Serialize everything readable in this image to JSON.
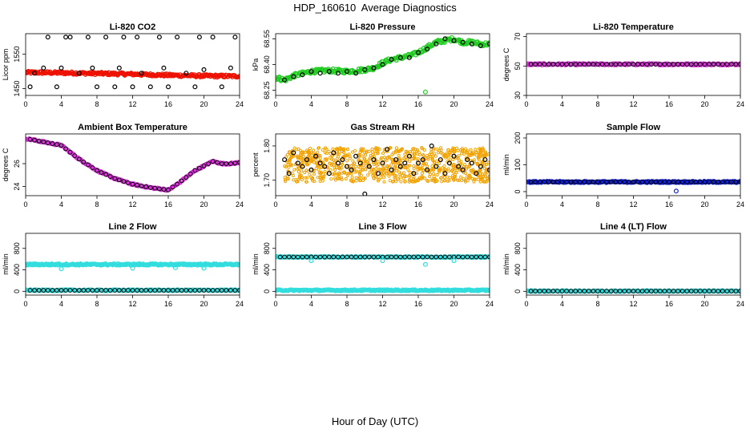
{
  "page": {
    "title": "HDP_160610  Average Diagnostics",
    "xlabel": "Hour of Day (UTC)"
  },
  "chart_data": [
    {
      "type": "scatter",
      "title": "Li-820 CO2",
      "ylabel": "Licor ppm",
      "xlim": [
        0,
        24
      ],
      "ylim": [
        1430,
        1610
      ],
      "xticks": [
        0,
        4,
        8,
        12,
        16,
        20,
        24
      ],
      "yticks": [
        1450,
        1550
      ],
      "series": [
        {
          "color": "#ee1100",
          "kind": "band",
          "x": [
            0,
            4,
            8,
            12,
            16,
            20,
            24
          ],
          "y": [
            1497,
            1496,
            1494,
            1492,
            1489,
            1487,
            1486
          ],
          "spread": 4
        },
        {
          "color": "#000000",
          "kind": "points",
          "x": [
            0.5,
            1,
            2,
            2.5,
            3.5,
            4,
            4.5,
            5,
            6,
            7,
            7.5,
            8,
            9,
            10,
            10.5,
            11,
            12,
            12.5,
            13,
            14,
            15,
            15.5,
            16,
            17,
            18,
            19,
            19.5,
            20,
            21,
            22,
            23,
            23.5
          ],
          "y": [
            1455,
            1495,
            1510,
            1600,
            1455,
            1510,
            1600,
            1600,
            1495,
            1600,
            1510,
            1455,
            1600,
            1455,
            1510,
            1600,
            1455,
            1600,
            1495,
            1455,
            1600,
            1510,
            1455,
            1600,
            1495,
            1455,
            1600,
            1505,
            1600,
            1455,
            1510,
            1600
          ]
        }
      ]
    },
    {
      "type": "scatter",
      "title": "Li-820 Pressure",
      "ylabel": "kPa",
      "xlim": [
        0,
        24
      ],
      "ylim": [
        68.22,
        68.58
      ],
      "xticks": [
        0,
        4,
        8,
        12,
        16,
        20,
        24
      ],
      "yticks": [
        68.25,
        68.4,
        68.55
      ],
      "ytick_labels": [
        "68.25",
        "68.40",
        "68.55"
      ],
      "series": [
        {
          "color": "#22cc22",
          "kind": "band",
          "x": [
            0,
            1,
            2,
            4,
            6,
            8,
            10,
            11,
            12,
            13,
            14,
            15,
            16,
            17,
            18,
            19,
            20,
            21,
            22,
            23,
            24
          ],
          "y": [
            68.325,
            68.31,
            68.335,
            68.36,
            68.365,
            68.36,
            68.37,
            68.38,
            68.41,
            68.43,
            68.44,
            68.45,
            68.47,
            68.5,
            68.53,
            68.54,
            68.55,
            68.53,
            68.53,
            68.52,
            68.52
          ],
          "spread": 0.012
        },
        {
          "color": "#000000",
          "kind": "points",
          "x": [
            1,
            2,
            3,
            4,
            5,
            6,
            7,
            8,
            9,
            10,
            11,
            12,
            13,
            14,
            15,
            16,
            17,
            18,
            19,
            20,
            21,
            22,
            23,
            24
          ],
          "y": [
            68.31,
            68.33,
            68.34,
            68.36,
            68.35,
            68.36,
            68.35,
            68.36,
            68.35,
            68.37,
            68.38,
            68.4,
            68.43,
            68.44,
            68.44,
            68.47,
            68.49,
            68.52,
            68.55,
            68.54,
            68.53,
            68.52,
            68.51,
            68.52
          ]
        },
        {
          "color": "#22cc22",
          "kind": "points",
          "x": [
            16.8
          ],
          "y": [
            68.24
          ]
        }
      ]
    },
    {
      "type": "scatter",
      "title": "Li-820 Temperature",
      "ylabel": "degrees C",
      "xlim": [
        0,
        24
      ],
      "ylim": [
        30,
        72
      ],
      "xticks": [
        0,
        4,
        8,
        12,
        16,
        20,
        24
      ],
      "yticks": [
        30,
        50,
        70
      ],
      "series": [
        {
          "color": "#dd33dd",
          "kind": "band",
          "x": [
            0,
            24
          ],
          "y": [
            51.2,
            51.2
          ],
          "spread": 0.6
        },
        {
          "color": "#000000",
          "kind": "dense",
          "x0": 0.5,
          "x1": 24,
          "n": 48,
          "y": [
            51.2,
            51.2
          ]
        }
      ]
    },
    {
      "type": "scatter",
      "title": "Ambient Box Temperature",
      "ylabel": "degrees C",
      "xlim": [
        0,
        24
      ],
      "ylim": [
        23.2,
        28.6
      ],
      "xticks": [
        0,
        4,
        8,
        12,
        16,
        20,
        24
      ],
      "yticks": [
        24,
        26
      ],
      "series": [
        {
          "color": "#dd33dd",
          "kind": "band",
          "x": [
            0,
            2,
            4,
            5,
            6,
            8,
            10,
            12,
            14,
            15,
            16,
            17,
            18,
            19,
            20,
            21,
            22,
            23,
            24
          ],
          "y": [
            28.2,
            27.9,
            27.6,
            27,
            26.4,
            25.4,
            24.7,
            24.2,
            23.9,
            23.8,
            23.7,
            24.2,
            24.8,
            25.4,
            25.8,
            26.2,
            26.0,
            26.0,
            26.1
          ],
          "spread": 0.07
        },
        {
          "color": "#000000",
          "kind": "dense",
          "x0": 0.5,
          "x1": 24,
          "n": 48,
          "curve": true
        }
      ]
    },
    {
      "type": "scatter",
      "title": "Gas Stream RH",
      "ylabel": "percent",
      "xlim": [
        0,
        24
      ],
      "ylim": [
        1.655,
        1.835
      ],
      "xticks": [
        0,
        4,
        8,
        12,
        16,
        20,
        24
      ],
      "yticks": [
        1.7,
        1.8
      ],
      "ytick_labels": [
        "1.70",
        "1.80"
      ],
      "series": [
        {
          "color": "#f2a200",
          "kind": "cloud",
          "x0": 1,
          "x1": 24,
          "center": 1.745,
          "spread": 0.05,
          "n": 900
        },
        {
          "color": "#000000",
          "kind": "points",
          "x": [
            1,
            1.5,
            2,
            2.5,
            3,
            3.5,
            4,
            4.5,
            5,
            5.5,
            6,
            6.5,
            7,
            7.5,
            8,
            8.5,
            9,
            9.5,
            10,
            10.5,
            11,
            11.5,
            12,
            12.5,
            13,
            13.5,
            14,
            14.5,
            15,
            15.5,
            16,
            16.5,
            17,
            17.5,
            18,
            18.5,
            19,
            19.5,
            20,
            20.5,
            21,
            21.5,
            22,
            22.5,
            23,
            23.5,
            24
          ],
          "y": [
            1.76,
            1.72,
            1.78,
            1.75,
            1.74,
            1.76,
            1.73,
            1.77,
            1.75,
            1.74,
            1.72,
            1.78,
            1.75,
            1.76,
            1.74,
            1.73,
            1.77,
            1.75,
            1.66,
            1.74,
            1.76,
            1.72,
            1.75,
            1.79,
            1.73,
            1.76,
            1.74,
            1.75,
            1.77,
            1.72,
            1.75,
            1.76,
            1.73,
            1.8,
            1.74,
            1.76,
            1.72,
            1.75,
            1.77,
            1.74,
            1.73,
            1.76,
            1.75,
            1.72,
            1.74,
            1.76,
            1.73
          ]
        }
      ]
    },
    {
      "type": "scatter",
      "title": "Sample Flow",
      "ylabel": "ml/min",
      "xlim": [
        0,
        24
      ],
      "ylim": [
        -15,
        215
      ],
      "xticks": [
        0,
        4,
        8,
        12,
        16,
        20,
        24
      ],
      "yticks": [
        0,
        100,
        200
      ],
      "series": [
        {
          "color": "#1122dd",
          "kind": "band",
          "x": [
            0,
            24
          ],
          "y": [
            36,
            36
          ],
          "spread": 3
        },
        {
          "color": "#000000",
          "kind": "dense",
          "x0": 0.5,
          "x1": 24,
          "n": 48,
          "y": [
            36,
            36
          ]
        },
        {
          "color": "#1122dd",
          "kind": "points",
          "x": [
            16.8
          ],
          "y": [
            2
          ]
        }
      ]
    },
    {
      "type": "scatter",
      "title": "Line 2 Flow",
      "ylabel": "ml/min",
      "xlim": [
        0,
        24
      ],
      "ylim": [
        -70,
        1080
      ],
      "xticks": [
        0,
        4,
        8,
        12,
        16,
        20,
        24
      ],
      "yticks": [
        0,
        400,
        800
      ],
      "series": [
        {
          "color": "#33dddd",
          "kind": "band",
          "x": [
            0,
            24
          ],
          "y": [
            500,
            500
          ],
          "spread": 15
        },
        {
          "color": "#33dddd",
          "kind": "band",
          "x": [
            0,
            24
          ],
          "y": [
            20,
            20
          ],
          "spread": 12
        },
        {
          "color": "#000000",
          "kind": "dense",
          "x0": 0.5,
          "x1": 24,
          "n": 48,
          "y": [
            20,
            20
          ]
        },
        {
          "color": "#33dddd",
          "kind": "points",
          "x": [
            4,
            12,
            16.8,
            20
          ],
          "y": [
            420,
            430,
            440,
            430
          ]
        }
      ]
    },
    {
      "type": "scatter",
      "title": "Line 3 Flow",
      "ylabel": "ml/min",
      "xlim": [
        0,
        24
      ],
      "ylim": [
        -70,
        1080
      ],
      "xticks": [
        0,
        4,
        8,
        12,
        16,
        20,
        24
      ],
      "yticks": [
        0,
        400,
        800
      ],
      "series": [
        {
          "color": "#33dddd",
          "kind": "band",
          "x": [
            0,
            24
          ],
          "y": [
            640,
            640
          ],
          "spread": 12
        },
        {
          "color": "#33dddd",
          "kind": "band",
          "x": [
            0,
            24
          ],
          "y": [
            20,
            20
          ],
          "spread": 12
        },
        {
          "color": "#000000",
          "kind": "dense",
          "x0": 0.5,
          "x1": 24,
          "n": 48,
          "y": [
            640,
            640
          ]
        },
        {
          "color": "#33dddd",
          "kind": "points",
          "x": [
            4,
            12,
            16.8,
            20
          ],
          "y": [
            570,
            570,
            500,
            570
          ]
        }
      ]
    },
    {
      "type": "scatter",
      "title": "Line 4 (LT) Flow",
      "ylabel": "ml/min",
      "xlim": [
        0,
        24
      ],
      "ylim": [
        -70,
        1080
      ],
      "xticks": [
        0,
        4,
        8,
        12,
        16,
        20,
        24
      ],
      "yticks": [
        0,
        400,
        800
      ],
      "series": [
        {
          "color": "#33dddd",
          "kind": "band",
          "x": [
            0,
            24
          ],
          "y": [
            5,
            5
          ],
          "spread": 10
        },
        {
          "color": "#000000",
          "kind": "dense",
          "x0": 0.5,
          "x1": 24,
          "n": 48,
          "y": [
            5,
            5
          ]
        }
      ]
    }
  ]
}
